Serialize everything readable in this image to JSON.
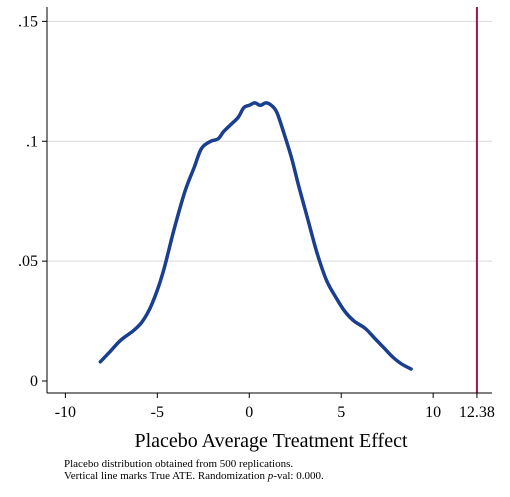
{
  "chart_data": {
    "type": "line",
    "xlabel": "Placebo Average Treatment Effect",
    "ylabel": "",
    "xlim": [
      -11.0,
      13.2
    ],
    "ylim": [
      -0.005,
      0.156
    ],
    "x_ticks": [
      {
        "value": -10,
        "label": "-10"
      },
      {
        "value": -5,
        "label": "-5"
      },
      {
        "value": 0,
        "label": "0"
      },
      {
        "value": 5,
        "label": "5"
      },
      {
        "value": 10,
        "label": "10"
      },
      {
        "value": 12.38,
        "label": "12.38"
      }
    ],
    "y_ticks": [
      {
        "value": 0,
        "label": "0"
      },
      {
        "value": 0.05,
        "label": ".05"
      },
      {
        "value": 0.1,
        "label": ".1"
      },
      {
        "value": 0.15,
        "label": ".15"
      }
    ],
    "grid": "horizontal",
    "series": [
      {
        "color": "#1a3f8f",
        "x": [
          -8.1,
          -7.6,
          -7.0,
          -6.3,
          -5.8,
          -5.3,
          -4.7,
          -4.1,
          -3.5,
          -3.0,
          -2.6,
          -2.1,
          -1.7,
          -1.4,
          -1.0,
          -0.6,
          -0.3,
          0.0,
          0.3,
          0.6,
          0.9,
          1.2,
          1.5,
          1.9,
          2.3,
          2.7,
          3.2,
          3.7,
          4.2,
          4.7,
          5.2,
          5.7,
          6.3,
          6.8,
          7.3,
          7.8,
          8.3,
          8.8
        ],
        "y": [
          0.008,
          0.012,
          0.017,
          0.021,
          0.025,
          0.032,
          0.045,
          0.063,
          0.079,
          0.089,
          0.097,
          0.1,
          0.101,
          0.104,
          0.107,
          0.11,
          0.114,
          0.115,
          0.116,
          0.115,
          0.116,
          0.115,
          0.112,
          0.103,
          0.093,
          0.081,
          0.067,
          0.053,
          0.042,
          0.035,
          0.029,
          0.025,
          0.022,
          0.018,
          0.014,
          0.01,
          0.007,
          0.005
        ]
      }
    ],
    "reference_line": {
      "x": 12.38,
      "color": "#a8123e"
    },
    "notes": [
      "Placebo distribution obtained from 500 replications.",
      "Vertical line marks True ATE. Randomization ",
      "p",
      "-val: 0.000."
    ]
  }
}
